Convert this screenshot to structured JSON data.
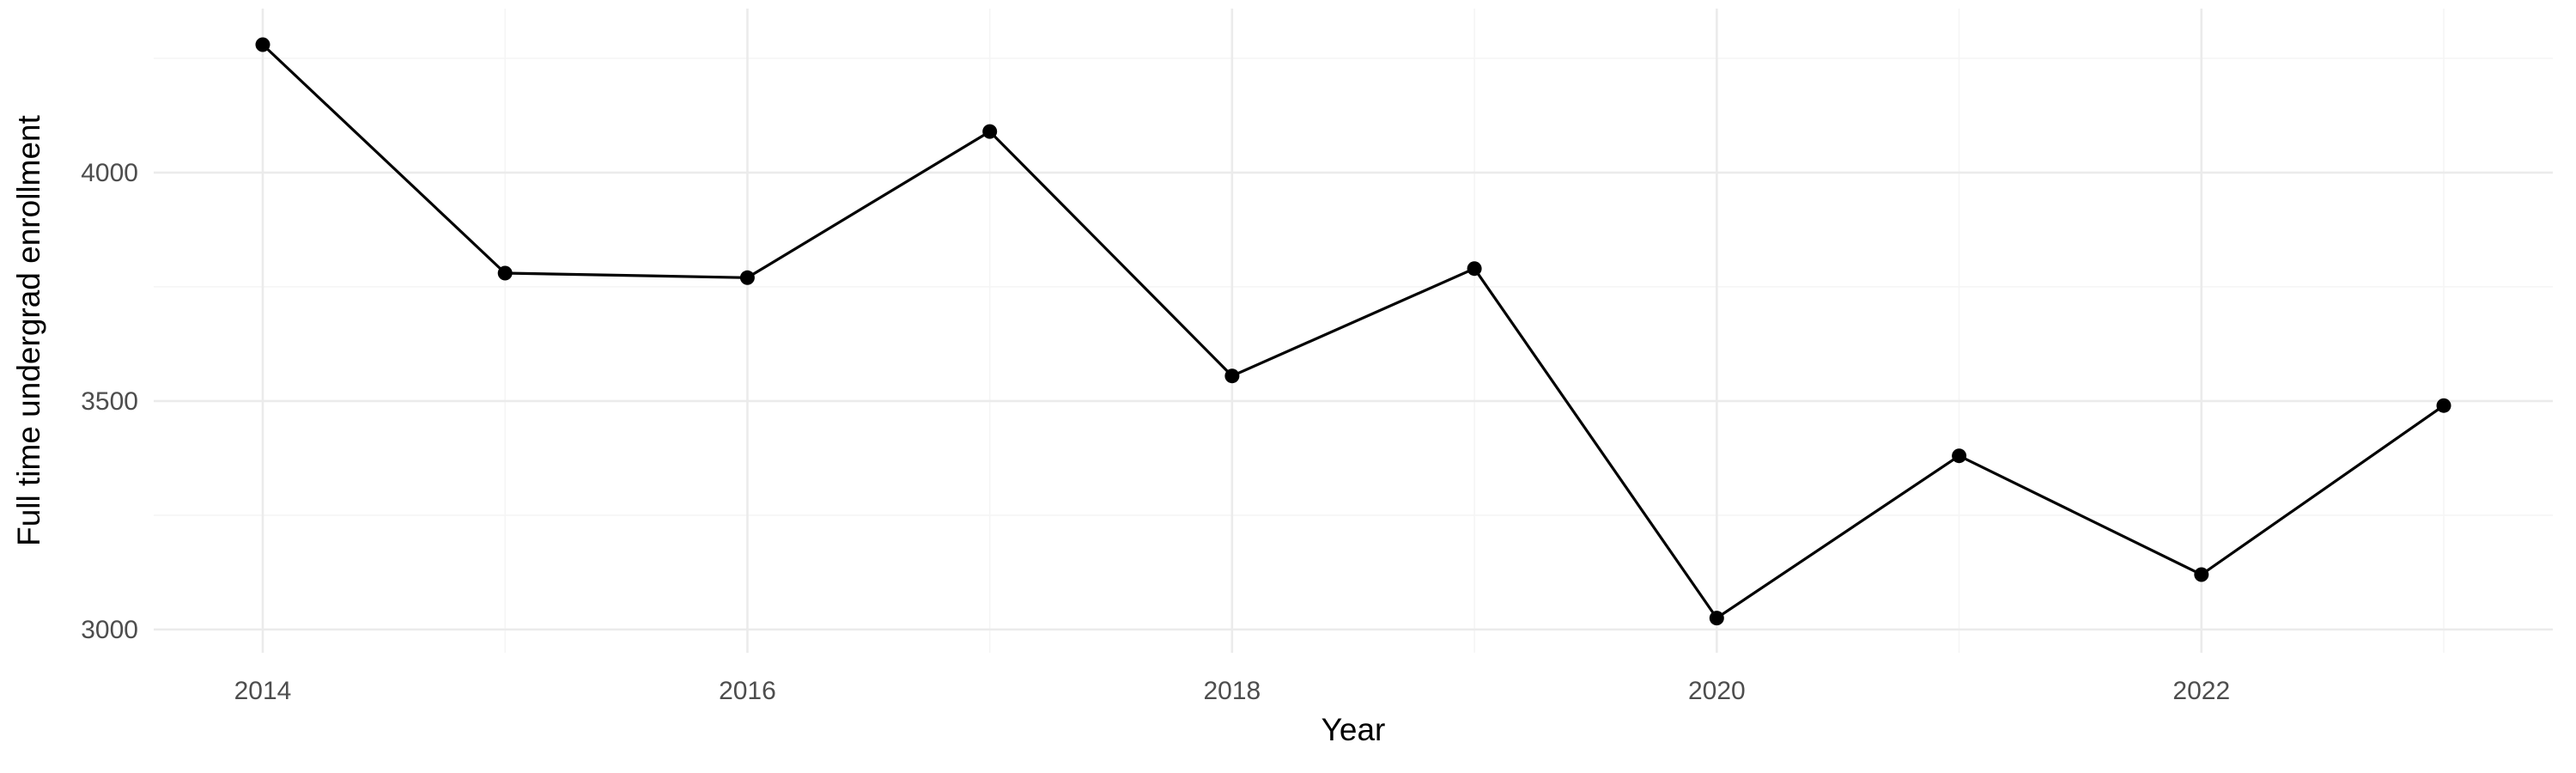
{
  "chart_data": {
    "type": "line",
    "title": "",
    "xlabel": "Year",
    "ylabel": "Full time undergrad enrollment",
    "x": [
      2014,
      2015,
      2016,
      2017,
      2018,
      2019,
      2020,
      2021,
      2022,
      2023
    ],
    "series": [
      {
        "name": "Full time undergrad enrollment",
        "values": [
          4280,
          3780,
          3770,
          4090,
          3555,
          3790,
          3025,
          3380,
          3120,
          3490
        ]
      }
    ],
    "xlim": [
      2013.55,
      2023.45
    ],
    "ylim": [
      2949,
      4359
    ],
    "x_major_ticks": [
      2014,
      2016,
      2018,
      2020,
      2022
    ],
    "x_minor_ticks": [
      2015,
      2017,
      2019,
      2021,
      2023
    ],
    "y_major_ticks": [
      3000,
      3500,
      4000
    ],
    "y_minor_ticks": [
      3250,
      3750,
      4250
    ],
    "grid": "on",
    "legend": "none",
    "colors": {
      "line": "#000000",
      "point": "#000000",
      "grid_major": "#EBEBEB",
      "grid_minor": "#F5F5F5",
      "tick_label": "#4D4D4D",
      "axis_title": "#000000",
      "background": "#FFFFFF"
    }
  }
}
